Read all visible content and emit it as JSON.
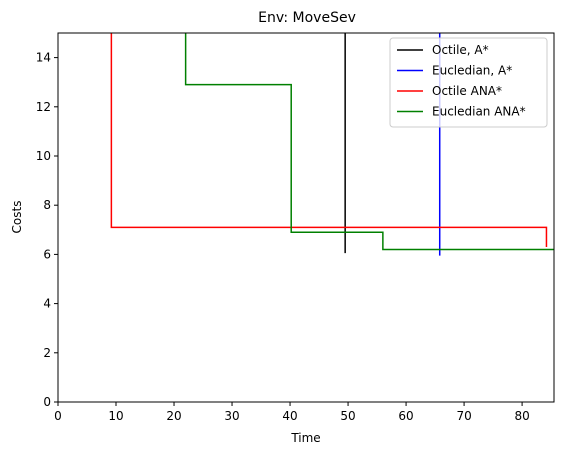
{
  "chart_data": {
    "type": "line",
    "title": "Env: MoveSev",
    "xlabel": "Time",
    "ylabel": "Costs",
    "xlim": [
      0,
      85.5
    ],
    "ylim": [
      0,
      15
    ],
    "xticks": [
      0,
      10,
      20,
      30,
      40,
      50,
      60,
      70,
      80
    ],
    "yticks": [
      0,
      2,
      4,
      6,
      8,
      10,
      12,
      14
    ],
    "grid": false,
    "legend_position": "top-right",
    "series": [
      {
        "name": "Octile, A*",
        "color": "#000000",
        "x": [
          49.5,
          49.5
        ],
        "y": [
          15,
          6.05
        ]
      },
      {
        "name": "Eucledian, A*",
        "color": "#0000ff",
        "x": [
          65.8,
          65.8
        ],
        "y": [
          15,
          5.95
        ]
      },
      {
        "name": "Octile ANA*",
        "color": "#ff0000",
        "x": [
          9.2,
          9.2,
          84.2,
          84.2
        ],
        "y": [
          15,
          7.1,
          7.1,
          6.3
        ]
      },
      {
        "name": "Eucledian ANA*",
        "color": "#008000",
        "x": [
          22.0,
          22.0,
          40.2,
          40.2,
          56.0,
          56.0,
          85.5
        ],
        "y": [
          15,
          12.9,
          12.9,
          6.9,
          6.9,
          6.2,
          6.2
        ]
      }
    ]
  }
}
